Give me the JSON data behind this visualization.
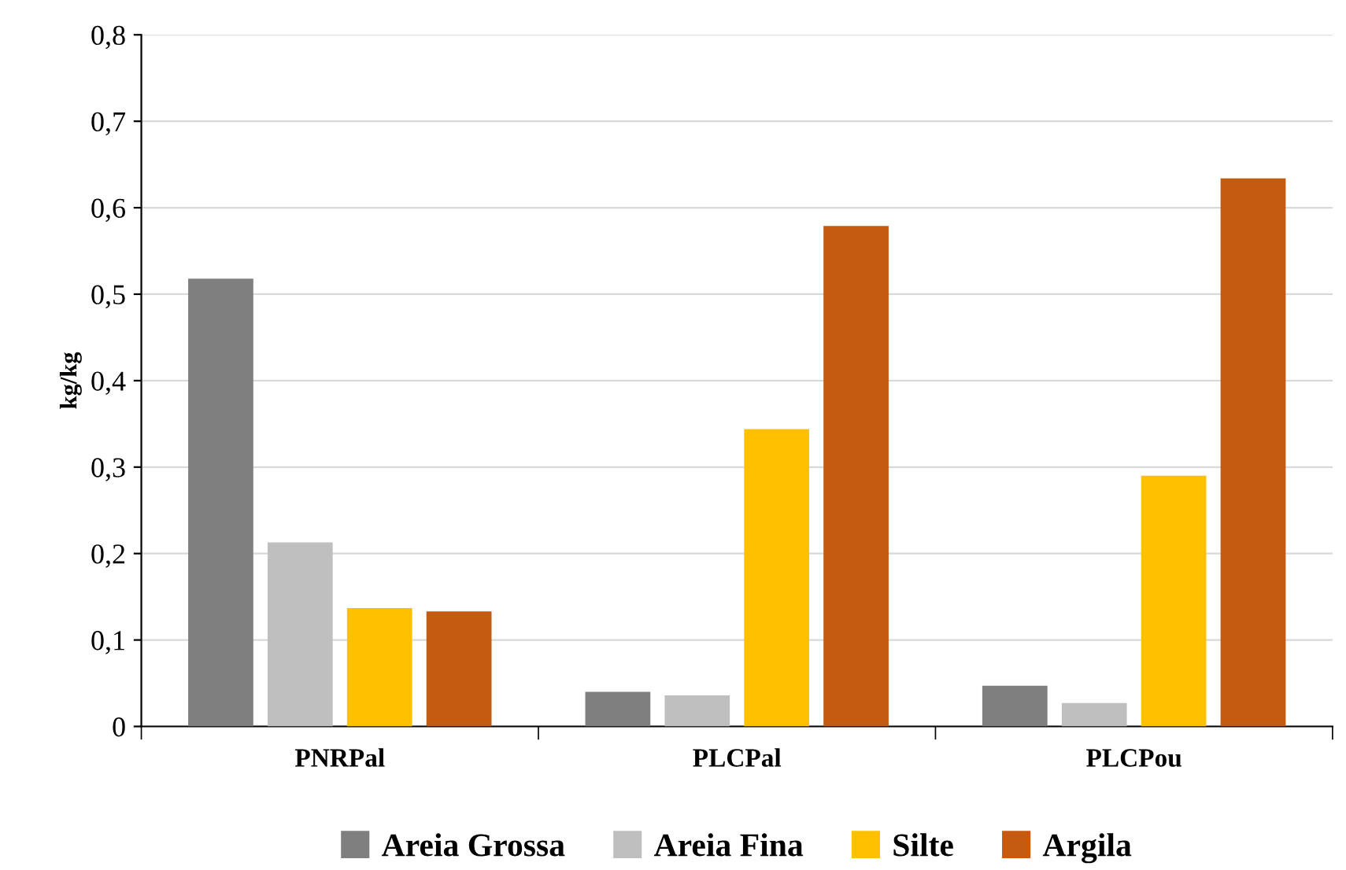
{
  "chart_data": {
    "type": "bar",
    "ylabel": "kg/kg",
    "categories": [
      "PNRPal",
      "PLCPal",
      "PLCPou"
    ],
    "series": [
      {
        "name": "Areia Grossa",
        "color": "#7f7f7f",
        "values": [
          0.518,
          0.04,
          0.047
        ]
      },
      {
        "name": "Areia Fina",
        "color": "#bfbfbf",
        "values": [
          0.213,
          0.036,
          0.027
        ]
      },
      {
        "name": "Silte",
        "color": "#ffc000",
        "values": [
          0.137,
          0.344,
          0.29
        ]
      },
      {
        "name": "Argila",
        "color": "#c55a11",
        "values": [
          0.133,
          0.579,
          0.634
        ]
      }
    ],
    "ylim": [
      0,
      0.8
    ],
    "yticks": [
      0,
      {
        "value": 0.1,
        "label": "0,1"
      },
      {
        "value": 0.2,
        "label": "0,2"
      },
      {
        "value": 0.3,
        "label": "0,3"
      },
      {
        "value": 0.4,
        "label": "0,4"
      },
      {
        "value": 0.5,
        "label": "0,5"
      },
      {
        "value": 0.6,
        "label": "0,6"
      },
      {
        "value": 0.7,
        "label": "0,7"
      },
      {
        "value": 0.8,
        "label": "0,8"
      }
    ],
    "grid": "y",
    "legend": "bottom"
  }
}
